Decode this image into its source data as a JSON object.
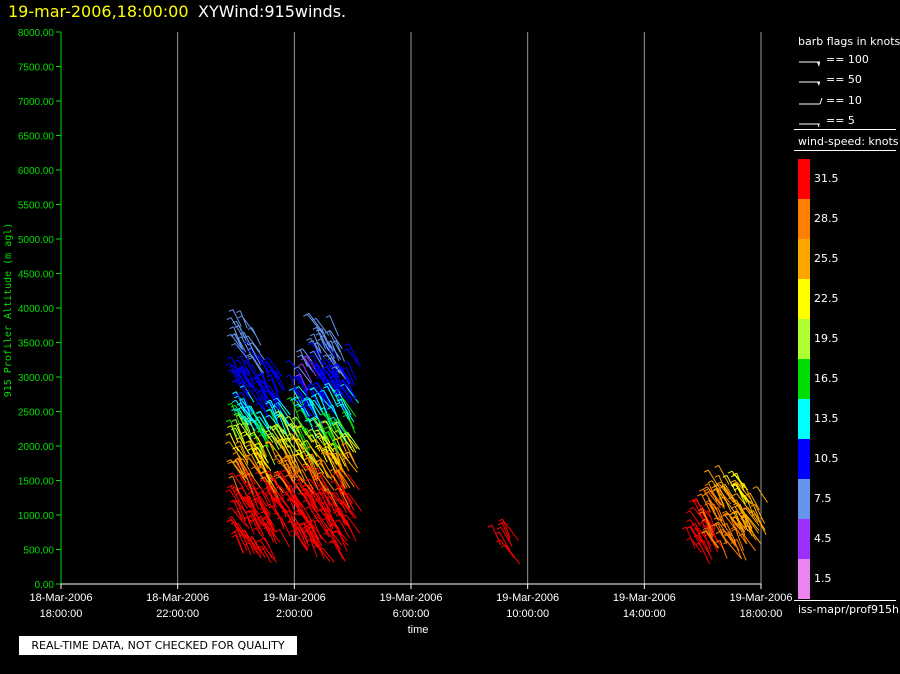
{
  "header": {
    "datetime": "19-mar-2006,18:00:00",
    "plot_name": "XYWind:915winds."
  },
  "qc_note": "REAL-TIME DATA, NOT CHECKED FOR QUALITY",
  "legend": {
    "barb_title": "barb flags in knots",
    "barb_items": [
      {
        "label": "== 100",
        "flag": "pennant"
      },
      {
        "label": "== 50",
        "flag": "pennant"
      },
      {
        "label": "== 10",
        "flag": "full"
      },
      {
        "label": "== 5",
        "flag": "half"
      }
    ],
    "wind_speed_title": "wind-speed: knots",
    "bins": [
      {
        "label": "31.5",
        "color": "#ff0000"
      },
      {
        "label": "28.5",
        "color": "#ff8000"
      },
      {
        "label": "25.5",
        "color": "#ffa500"
      },
      {
        "label": "22.5",
        "color": "#ffff00"
      },
      {
        "label": "19.5",
        "color": "#adff2f"
      },
      {
        "label": "16.5",
        "color": "#00dd00"
      },
      {
        "label": "13.5",
        "color": "#00ffff"
      },
      {
        "label": "10.5",
        "color": "#0000ff"
      },
      {
        "label": "7.5",
        "color": "#6495ed"
      },
      {
        "label": "4.5",
        "color": "#9b30ff"
      },
      {
        "label": "1.5",
        "color": "#ee82ee"
      }
    ],
    "source_path": "iss-mapr/prof915h"
  },
  "chart_data": {
    "type": "scatter",
    "title": "XYWind:915winds.",
    "xlabel": "time",
    "ylabel": "915 Profiler Altitude (m agl)",
    "axis_color": "#00dd00",
    "xlim": [
      "2006-03-18T18:00",
      "2006-03-19T18:00"
    ],
    "ylim": [
      0,
      8000
    ],
    "x_ticks": [
      {
        "date": "18-Mar-2006",
        "time": "18:00:00"
      },
      {
        "date": "18-Mar-2006",
        "time": "22:00:00"
      },
      {
        "date": "19-Mar-2006",
        "time": "2:00:00"
      },
      {
        "date": "19-Mar-2006",
        "time": "6:00:00"
      },
      {
        "date": "19-Mar-2006",
        "time": "10:00:00"
      },
      {
        "date": "19-Mar-2006",
        "time": "14:00:00"
      },
      {
        "date": "19-Mar-2006",
        "time": "18:00:00"
      }
    ],
    "y_ticks": [
      "0.00",
      "500.00",
      "1000.00",
      "1500.00",
      "2000.00",
      "2500.00",
      "3000.00",
      "3500.00",
      "4000.00",
      "4500.00",
      "5000.00",
      "5500.00",
      "6000.00",
      "6500.00",
      "7000.00",
      "7500.00",
      "8000.00"
    ],
    "grid": "vertical",
    "series": [
      {
        "time": "2006-03-19T00:00",
        "heights": [
          600,
          800,
          1000,
          1200,
          1400,
          1600,
          1800,
          2000,
          2200,
          2400,
          2600,
          2800,
          3000,
          3200,
          3400,
          3600,
          3800
        ],
        "speeds": [
          32,
          32,
          31,
          31,
          30,
          28,
          24,
          22,
          19,
          15,
          13,
          11,
          10,
          9,
          8,
          8,
          7
        ]
      },
      {
        "time": "2006-03-19T00:20",
        "heights": [
          600,
          800,
          1000,
          1200,
          1400,
          1600,
          1800,
          2000,
          2200,
          2400,
          2600,
          2800,
          3000,
          3200,
          3400
        ],
        "speeds": [
          32,
          32,
          31,
          31,
          30,
          28,
          25,
          22,
          18,
          14,
          12,
          11,
          10,
          9,
          8
        ]
      },
      {
        "time": "2006-03-19T00:40",
        "heights": [
          600,
          800,
          1000,
          1200,
          1400,
          1600,
          1800,
          2000,
          2200,
          2400,
          2600,
          2800,
          3000,
          3200
        ],
        "speeds": [
          32,
          32,
          32,
          31,
          30,
          27,
          24,
          21,
          17,
          13,
          11,
          10,
          9,
          8
        ]
      },
      {
        "time": "2006-03-19T01:00",
        "heights": [
          600,
          800,
          1000,
          1200,
          1400,
          1600,
          1800,
          2000,
          2200,
          2400,
          2600,
          2800,
          3000
        ],
        "speeds": [
          32,
          32,
          31,
          30,
          28,
          25,
          23,
          20,
          16,
          12,
          11,
          10,
          9
        ]
      },
      {
        "time": "2006-03-19T01:20",
        "heights": [
          1000,
          1200,
          1400,
          1600,
          1800,
          2000,
          2200,
          2400,
          2600,
          2800
        ],
        "speeds": [
          31,
          31,
          30,
          28,
          24,
          21,
          18,
          14,
          12,
          11
        ]
      },
      {
        "time": "2006-03-19T01:40",
        "heights": [
          800,
          1000,
          1200,
          1400,
          1600,
          1800,
          2000,
          2200
        ],
        "speeds": [
          32,
          32,
          31,
          30,
          28,
          25,
          22,
          19
        ]
      },
      {
        "time": "2006-03-19T02:00",
        "heights": [
          600,
          800,
          1000,
          1200,
          1400,
          1600,
          1800,
          2000,
          2200,
          2400,
          2600,
          2800,
          3000
        ],
        "speeds": [
          32,
          32,
          32,
          31,
          30,
          28,
          24,
          22,
          19,
          16,
          12,
          10,
          9
        ]
      },
      {
        "time": "2006-03-19T02:20",
        "heights": [
          600,
          800,
          1000,
          1200,
          1400,
          1600,
          1800,
          2000,
          2200,
          2400,
          2600,
          2800,
          3000,
          3200
        ],
        "speeds": [
          32,
          32,
          32,
          31,
          30,
          27,
          22,
          19,
          15,
          12,
          10,
          9,
          5,
          8
        ]
      },
      {
        "time": "2006-03-19T02:40",
        "heights": [
          600,
          800,
          1000,
          1200,
          1400,
          1600,
          1800,
          2000,
          2200,
          2400,
          2600,
          2800,
          3000,
          3200,
          3400,
          3600
        ],
        "speeds": [
          32,
          32,
          32,
          31,
          30,
          28,
          25,
          22,
          18,
          14,
          12,
          11,
          10,
          9,
          8,
          8
        ]
      },
      {
        "time": "2006-03-19T03:00",
        "heights": [
          600,
          800,
          1000,
          1200,
          1400,
          1600,
          1800,
          2000,
          2200,
          2400,
          2600,
          2800,
          3000,
          3200,
          3400,
          3600
        ],
        "speeds": [
          32,
          32,
          32,
          31,
          30,
          28,
          25,
          22,
          18,
          15,
          12,
          11,
          10,
          9,
          8,
          8
        ]
      },
      {
        "time": "2006-03-19T03:20",
        "heights": [
          600,
          800,
          1000,
          1200,
          1400,
          1600,
          1800,
          2000,
          2200,
          2400,
          2600,
          2800,
          3000,
          3200,
          3400
        ],
        "speeds": [
          32,
          32,
          32,
          31,
          29,
          27,
          24,
          21,
          17,
          14,
          12,
          10,
          9,
          8,
          8
        ]
      },
      {
        "time": "2006-03-19T03:40",
        "heights": [
          800,
          1000,
          1200,
          1400,
          1600,
          1800,
          2000,
          2200,
          2400,
          2600,
          2800,
          3000,
          3200
        ],
        "speeds": [
          32,
          32,
          31,
          30,
          28,
          25,
          22,
          19,
          15,
          12,
          11,
          10,
          9
        ]
      },
      {
        "time": "2006-03-19T09:00",
        "heights": [
          600,
          800
        ],
        "speeds": [
          31,
          31
        ]
      },
      {
        "time": "2006-03-19T15:40",
        "heights": [
          600,
          800,
          1000
        ],
        "speeds": [
          31,
          30,
          30
        ]
      },
      {
        "time": "2006-03-19T16:00",
        "heights": [
          600,
          800,
          1000,
          1200
        ],
        "speeds": [
          31,
          30,
          29,
          28
        ]
      },
      {
        "time": "2006-03-19T16:20",
        "heights": [
          600,
          800,
          1000,
          1200,
          1400
        ],
        "speeds": [
          30,
          29,
          28,
          27,
          25
        ]
      },
      {
        "time": "2006-03-19T16:40",
        "heights": [
          600,
          800,
          1000,
          1200,
          1400
        ],
        "speeds": [
          29,
          28,
          27,
          26,
          24
        ]
      },
      {
        "time": "2006-03-19T17:00",
        "heights": [
          600,
          800,
          1000,
          1200,
          1400
        ],
        "speeds": [
          28,
          27,
          26,
          24,
          23
        ]
      },
      {
        "time": "2006-03-19T17:20",
        "heights": [
          600,
          800,
          1000,
          1200,
          1400
        ],
        "speeds": [
          28,
          26,
          25,
          24,
          22
        ]
      },
      {
        "time": "2006-03-19T17:40",
        "heights": [
          800,
          1000,
          1200
        ],
        "speeds": [
          26,
          25,
          24
        ]
      }
    ]
  }
}
